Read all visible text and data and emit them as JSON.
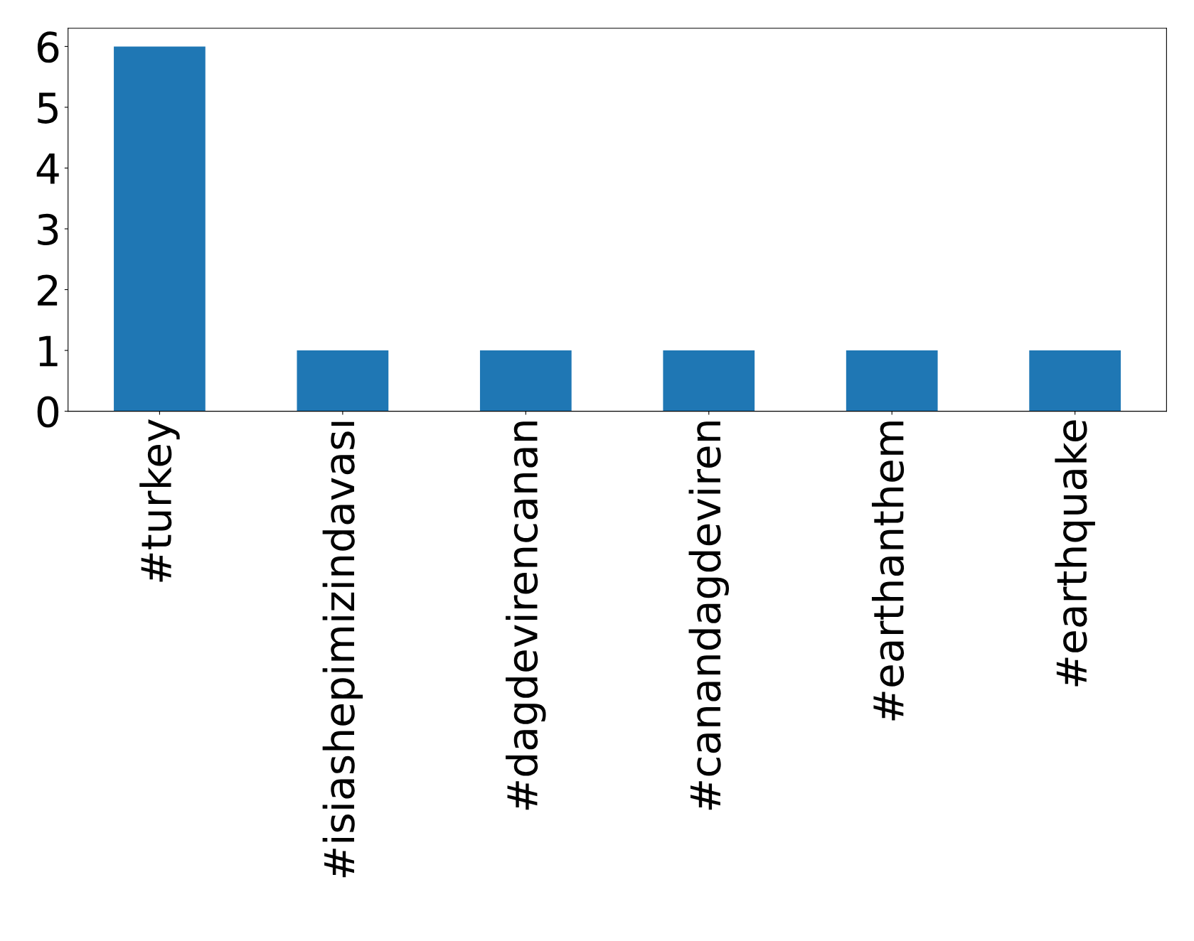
{
  "chart_data": {
    "type": "bar",
    "categories": [
      "#turkey",
      "#isiashepimizindavası",
      "#dagdevirencanan",
      "#canandagdeviren",
      "#earthanthem",
      "#earthquake"
    ],
    "values": [
      6,
      1,
      1,
      1,
      1,
      1
    ],
    "color": "#1f77b4",
    "ylim": [
      0,
      6.3
    ],
    "yticks": [
      0,
      1,
      2,
      3,
      4,
      5,
      6
    ],
    "grid": false,
    "legend": false
  }
}
